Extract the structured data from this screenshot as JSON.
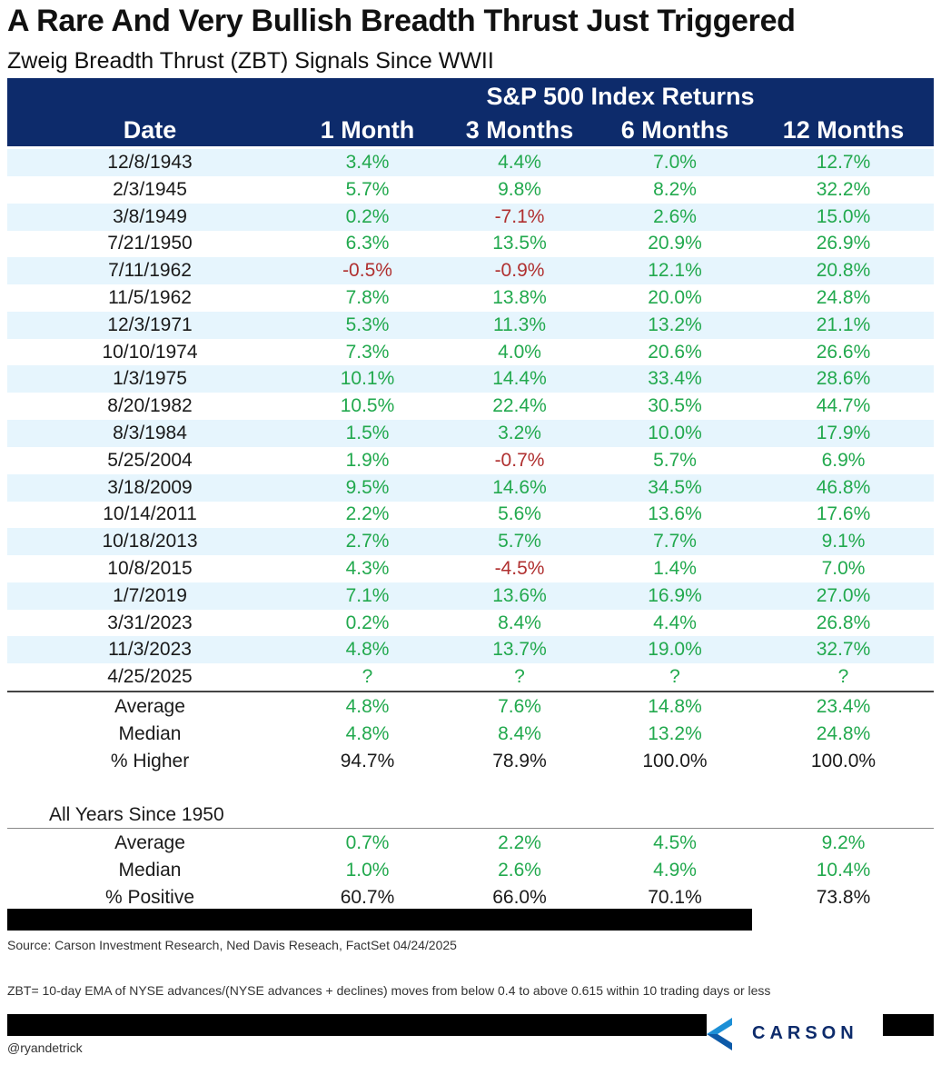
{
  "title": "A Rare And Very Bullish Breadth Thrust Just Triggered",
  "subtitle": "Zweig Breadth Thrust (ZBT) Signals Since WWII",
  "header": {
    "group_label": "S&P 500 Index Returns",
    "columns": [
      "Date",
      "1 Month",
      "3 Months",
      "6 Months",
      "12 Months"
    ]
  },
  "rows": [
    {
      "date": "12/8/1943",
      "values": [
        "3.4%",
        "4.4%",
        "7.0%",
        "12.7%"
      ]
    },
    {
      "date": "2/3/1945",
      "values": [
        "5.7%",
        "9.8%",
        "8.2%",
        "32.2%"
      ]
    },
    {
      "date": "3/8/1949",
      "values": [
        "0.2%",
        "-7.1%",
        "2.6%",
        "15.0%"
      ]
    },
    {
      "date": "7/21/1950",
      "values": [
        "6.3%",
        "13.5%",
        "20.9%",
        "26.9%"
      ]
    },
    {
      "date": "7/11/1962",
      "values": [
        "-0.5%",
        "-0.9%",
        "12.1%",
        "20.8%"
      ]
    },
    {
      "date": "11/5/1962",
      "values": [
        "7.8%",
        "13.8%",
        "20.0%",
        "24.8%"
      ]
    },
    {
      "date": "12/3/1971",
      "values": [
        "5.3%",
        "11.3%",
        "13.2%",
        "21.1%"
      ]
    },
    {
      "date": "10/10/1974",
      "values": [
        "7.3%",
        "4.0%",
        "20.6%",
        "26.6%"
      ]
    },
    {
      "date": "1/3/1975",
      "values": [
        "10.1%",
        "14.4%",
        "33.4%",
        "28.6%"
      ]
    },
    {
      "date": "8/20/1982",
      "values": [
        "10.5%",
        "22.4%",
        "30.5%",
        "44.7%"
      ]
    },
    {
      "date": "8/3/1984",
      "values": [
        "1.5%",
        "3.2%",
        "10.0%",
        "17.9%"
      ]
    },
    {
      "date": "5/25/2004",
      "values": [
        "1.9%",
        "-0.7%",
        "5.7%",
        "6.9%"
      ]
    },
    {
      "date": "3/18/2009",
      "values": [
        "9.5%",
        "14.6%",
        "34.5%",
        "46.8%"
      ]
    },
    {
      "date": "10/14/2011",
      "values": [
        "2.2%",
        "5.6%",
        "13.6%",
        "17.6%"
      ]
    },
    {
      "date": "10/18/2013",
      "values": [
        "2.7%",
        "5.7%",
        "7.7%",
        "9.1%"
      ]
    },
    {
      "date": "10/8/2015",
      "values": [
        "4.3%",
        "-4.5%",
        "1.4%",
        "7.0%"
      ]
    },
    {
      "date": "1/7/2019",
      "values": [
        "7.1%",
        "13.6%",
        "16.9%",
        "27.0%"
      ]
    },
    {
      "date": "3/31/2023",
      "values": [
        "0.2%",
        "8.4%",
        "4.4%",
        "26.8%"
      ]
    },
    {
      "date": "11/3/2023",
      "values": [
        "4.8%",
        "13.7%",
        "19.0%",
        "32.7%"
      ]
    },
    {
      "date": "4/25/2025",
      "values": [
        "?",
        "?",
        "?",
        "?"
      ]
    }
  ],
  "summary": [
    {
      "label": "Average",
      "values": [
        "4.8%",
        "7.6%",
        "14.8%",
        "23.4%"
      ],
      "color": "pos"
    },
    {
      "label": "Median",
      "values": [
        "4.8%",
        "8.4%",
        "13.2%",
        "24.8%"
      ],
      "color": "pos"
    },
    {
      "label": "% Higher",
      "values": [
        "94.7%",
        "78.9%",
        "100.0%",
        "100.0%"
      ],
      "color": "blk"
    }
  ],
  "all_years": {
    "label": "All Years Since 1950",
    "rows": [
      {
        "label": "Average",
        "values": [
          "0.7%",
          "2.2%",
          "4.5%",
          "9.2%"
        ],
        "color": "pos"
      },
      {
        "label": "Median",
        "values": [
          "1.0%",
          "2.6%",
          "4.9%",
          "10.4%"
        ],
        "color": "pos"
      },
      {
        "label": "% Positive",
        "values": [
          "60.7%",
          "66.0%",
          "70.1%",
          "73.8%"
        ],
        "color": "blk"
      }
    ]
  },
  "source": "Source: Carson Investment Research, Ned Davis Reseach, FactSet 04/24/2025",
  "footnote": "ZBT= 10-day EMA of NYSE advances/(NYSE advances + declines) moves from below 0.4 to above 0.615 within 10 trading days or less",
  "handle": "@ryandetrick",
  "logo_text": "CARSON",
  "colors": {
    "header_bg": "#0d2b6b",
    "row_shade": "#e6f5fd",
    "positive": "#22a94e",
    "negative": "#b03030"
  }
}
